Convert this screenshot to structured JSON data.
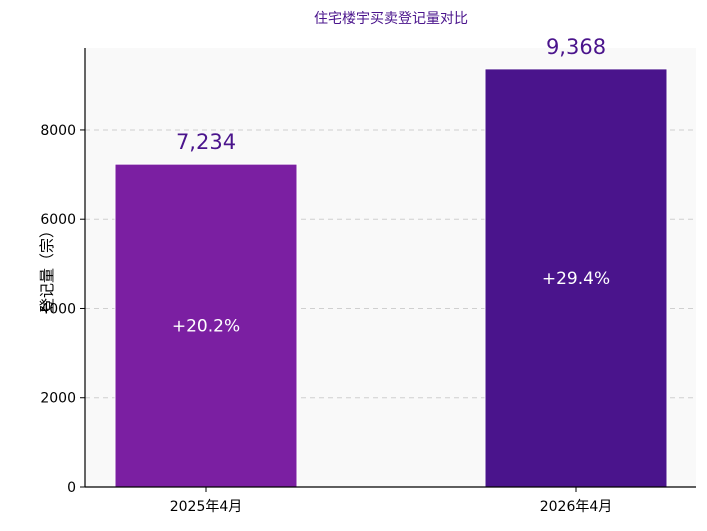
{
  "chart_data": {
    "type": "bar",
    "title": "住宅楼宇买卖登记量对比",
    "ylabel": "登记量（宗）",
    "xlabel": "",
    "categories": [
      "2025年4月",
      "2026年4月"
    ],
    "values": [
      7234,
      9368
    ],
    "value_labels": [
      "7,234",
      "9,368"
    ],
    "change_labels": [
      "+20.2%",
      "+29.4%"
    ],
    "ylim": [
      0,
      9836
    ],
    "yticks": [
      0,
      2000,
      4000,
      6000,
      8000
    ],
    "grid": "y-dashed",
    "legend": "none",
    "colors": {
      "bars": [
        "#7b1fa2",
        "#4a148c"
      ],
      "title": "#4a148c",
      "value_label": "#4a148c",
      "change_label": "#ffffff",
      "plot_bg": "#f9f9f9",
      "grid": "#d0d0d0",
      "axis": "#000000"
    }
  }
}
